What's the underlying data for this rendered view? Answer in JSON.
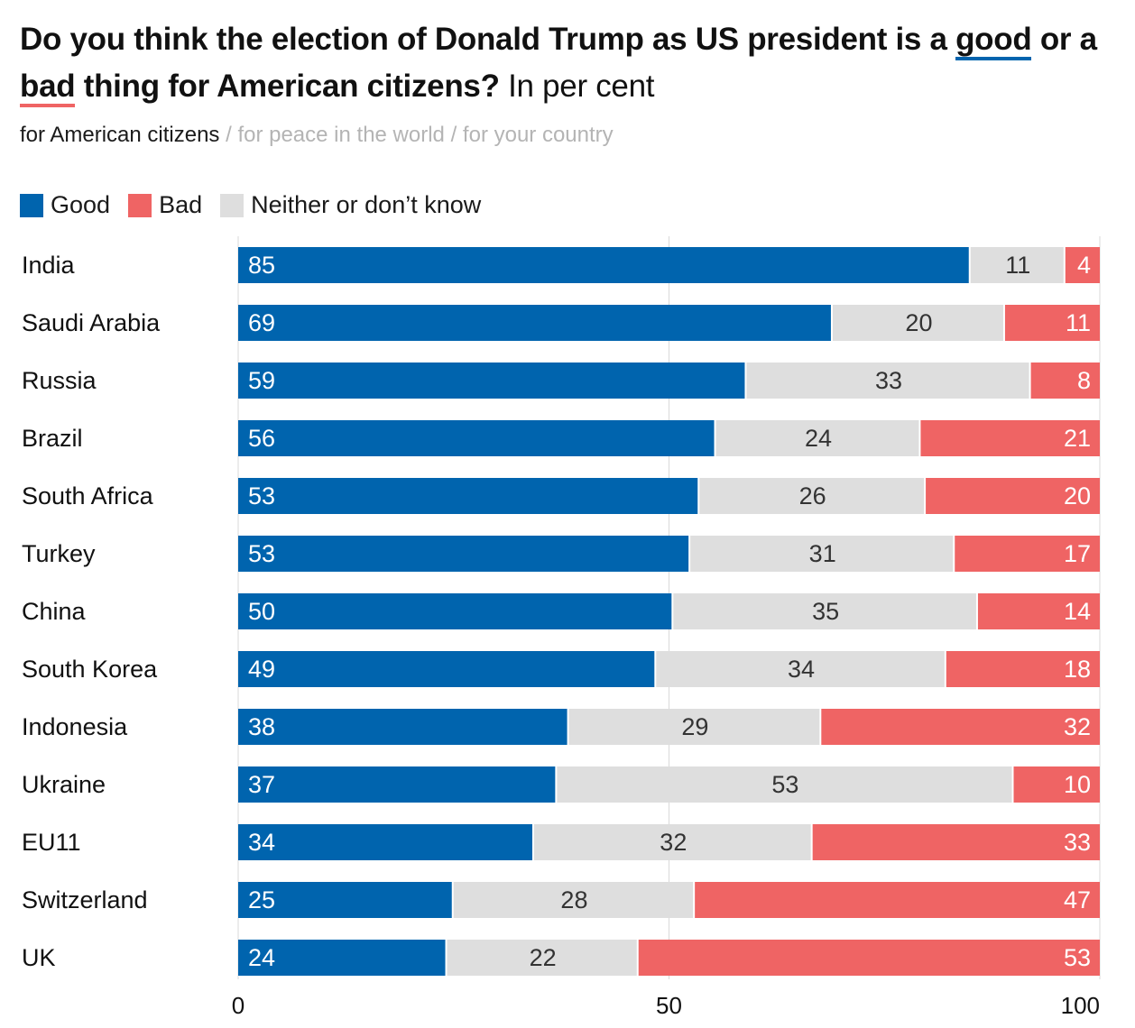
{
  "title": {
    "part1": "Do you think the election of Donald Trump as US president is a ",
    "good_word": "good",
    "part2": " or a ",
    "bad_word": "bad",
    "part3": " thing for American citizens?",
    "subtitle": " In per cent"
  },
  "tabs": {
    "active": "for American citizens",
    "sep1": " / ",
    "tab2": "for peace in the world",
    "sep2": " / ",
    "tab3": "for your country"
  },
  "legend": {
    "good": "Good",
    "bad": "Bad",
    "neither": "Neither or don’t know"
  },
  "colors": {
    "good": "#0064ae",
    "bad": "#ef6464",
    "neither": "#dedede",
    "grid": "#d9d9d9"
  },
  "chart_data": {
    "type": "bar",
    "orientation": "horizontal",
    "stacked": true,
    "categories": [
      "India",
      "Saudi Arabia",
      "Russia",
      "Brazil",
      "South Africa",
      "Turkey",
      "China",
      "South Korea",
      "Indonesia",
      "Ukraine",
      "EU11",
      "Switzerland",
      "UK"
    ],
    "series": [
      {
        "name": "Good",
        "values": [
          85,
          69,
          59,
          56,
          53,
          53,
          50,
          49,
          38,
          37,
          34,
          25,
          24
        ]
      },
      {
        "name": "Neither or don’t know",
        "values": [
          11,
          20,
          33,
          24,
          26,
          31,
          35,
          34,
          29,
          53,
          32,
          28,
          22
        ]
      },
      {
        "name": "Bad",
        "values": [
          4,
          11,
          8,
          21,
          20,
          17,
          14,
          18,
          32,
          10,
          33,
          47,
          53
        ]
      }
    ],
    "xlim": [
      0,
      100
    ],
    "xticks": [
      0,
      50,
      100
    ],
    "grid": true
  }
}
